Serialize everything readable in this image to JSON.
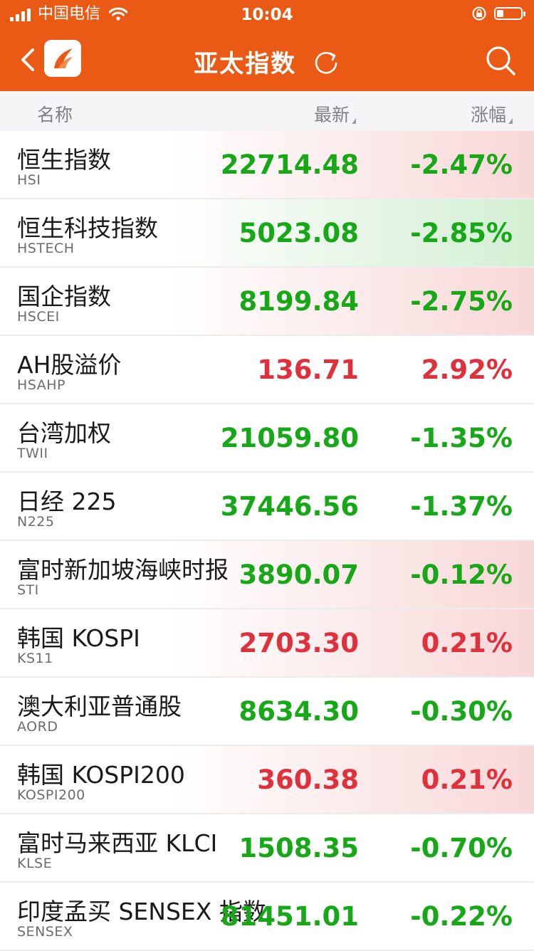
{
  "status_bar": {
    "carrier": "中国电信",
    "time": "10:04"
  },
  "nav": {
    "title": "亚太指数",
    "back_icon": "chevron-left-icon",
    "logo_icon": "app-logo",
    "refresh_icon": "refresh-icon",
    "search_icon": "search-icon"
  },
  "header": {
    "name": "名称",
    "latest": "最新",
    "change": "涨幅"
  },
  "colors": {
    "brand": "#eb5a14",
    "up": "#e0303c",
    "down": "#17a818"
  },
  "indices": [
    {
      "name": "恒生指数",
      "code": "HSI",
      "latest": "22714.48",
      "change": "-2.47%",
      "dir": "down",
      "bg": "down"
    },
    {
      "name": "恒生科技指数",
      "code": "HSTECH",
      "latest": "5023.08",
      "change": "-2.85%",
      "dir": "down",
      "bg": "hl-green"
    },
    {
      "name": "国企指数",
      "code": "HSCEI",
      "latest": "8199.84",
      "change": "-2.75%",
      "dir": "down",
      "bg": "down"
    },
    {
      "name": "AH股溢价",
      "code": "HSAHP",
      "latest": "136.71",
      "change": "2.92%",
      "dir": "up",
      "bg": "plain"
    },
    {
      "name": "台湾加权",
      "code": "TWII",
      "latest": "21059.80",
      "change": "-1.35%",
      "dir": "down",
      "bg": "plain"
    },
    {
      "name": "日经 225",
      "code": "N225",
      "latest": "37446.56",
      "change": "-1.37%",
      "dir": "down",
      "bg": "plain"
    },
    {
      "name": "富时新加坡海峡时报",
      "code": "STI",
      "latest": "3890.07",
      "change": "-0.12%",
      "dir": "down",
      "bg": "down"
    },
    {
      "name": "韩国 KOSPI",
      "code": "KS11",
      "latest": "2703.30",
      "change": "0.21%",
      "dir": "up",
      "bg": "up"
    },
    {
      "name": "澳大利亚普通股",
      "code": "AORD",
      "latest": "8634.30",
      "change": "-0.30%",
      "dir": "down",
      "bg": "plain"
    },
    {
      "name": "韩国 KOSPI200",
      "code": "KOSPI200",
      "latest": "360.38",
      "change": "0.21%",
      "dir": "up",
      "bg": "up"
    },
    {
      "name": "富时马来西亚 KLCI",
      "code": "KLSE",
      "latest": "1508.35",
      "change": "-0.70%",
      "dir": "down",
      "bg": "plain"
    },
    {
      "name": "印度孟买 SENSEX 指数",
      "code": "SENSEX",
      "latest": "81451.01",
      "change": "-0.22%",
      "dir": "down",
      "bg": "plain"
    }
  ]
}
